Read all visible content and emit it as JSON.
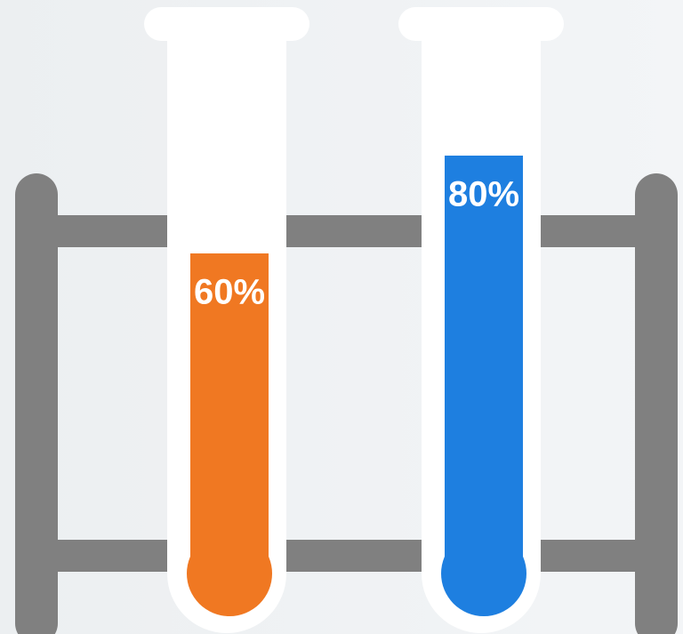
{
  "chart_data": {
    "type": "bar",
    "values": [
      60,
      80
    ],
    "value_labels": [
      "60%",
      "80%"
    ],
    "colors": [
      "#f07822",
      "#1e7fe0"
    ],
    "ylim": [
      0,
      100
    ]
  }
}
